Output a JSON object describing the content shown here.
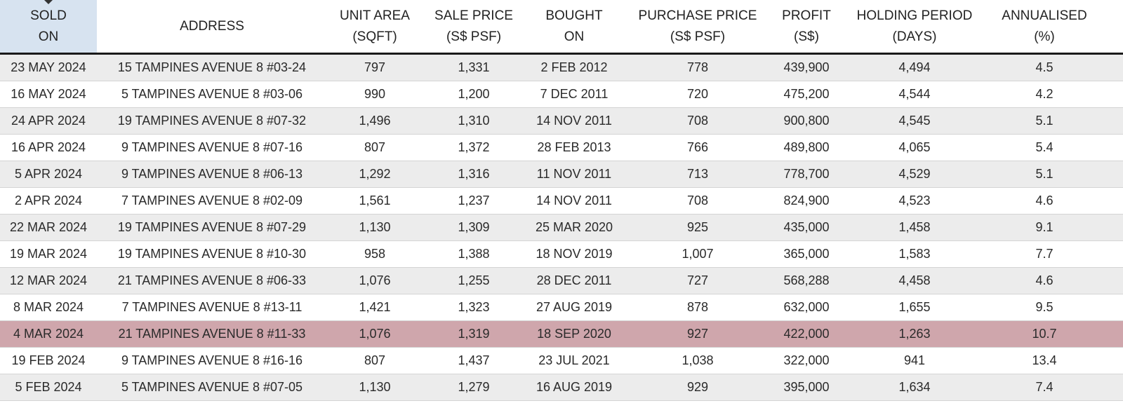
{
  "columns": [
    {
      "label": "SOLD\nON",
      "sorted": true
    },
    {
      "label": "ADDRESS",
      "sorted": false
    },
    {
      "label": "UNIT AREA\n(SQFT)",
      "sorted": false
    },
    {
      "label": "SALE PRICE\n(S$ PSF)",
      "sorted": false
    },
    {
      "label": "BOUGHT\nON",
      "sorted": false
    },
    {
      "label": "PURCHASE PRICE\n(S$ PSF)",
      "sorted": false
    },
    {
      "label": "PROFIT\n(S$)",
      "sorted": false
    },
    {
      "label": "HOLDING PERIOD\n(DAYS)",
      "sorted": false
    },
    {
      "label": "ANNUALISED\n(%)",
      "sorted": false
    }
  ],
  "sort_indicator": "sort-descending-icon",
  "highlight_color": "#cfa6ac",
  "rows": [
    {
      "cells": [
        "23 MAY 2024",
        "15 TAMPINES AVENUE 8 #03-24",
        "797",
        "1,331",
        "2 FEB 2012",
        "778",
        "439,900",
        "4,494",
        "4.5"
      ],
      "highlight": false
    },
    {
      "cells": [
        "16 MAY 2024",
        "5 TAMPINES AVENUE 8 #03-06",
        "990",
        "1,200",
        "7 DEC 2011",
        "720",
        "475,200",
        "4,544",
        "4.2"
      ],
      "highlight": false
    },
    {
      "cells": [
        "24 APR 2024",
        "19 TAMPINES AVENUE 8 #07-32",
        "1,496",
        "1,310",
        "14 NOV 2011",
        "708",
        "900,800",
        "4,545",
        "5.1"
      ],
      "highlight": false
    },
    {
      "cells": [
        "16 APR 2024",
        "9 TAMPINES AVENUE 8 #07-16",
        "807",
        "1,372",
        "28 FEB 2013",
        "766",
        "489,800",
        "4,065",
        "5.4"
      ],
      "highlight": false
    },
    {
      "cells": [
        "5 APR 2024",
        "9 TAMPINES AVENUE 8 #06-13",
        "1,292",
        "1,316",
        "11 NOV 2011",
        "713",
        "778,700",
        "4,529",
        "5.1"
      ],
      "highlight": false
    },
    {
      "cells": [
        "2 APR 2024",
        "7 TAMPINES AVENUE 8 #02-09",
        "1,561",
        "1,237",
        "14 NOV 2011",
        "708",
        "824,900",
        "4,523",
        "4.6"
      ],
      "highlight": false
    },
    {
      "cells": [
        "22 MAR 2024",
        "19 TAMPINES AVENUE 8 #07-29",
        "1,130",
        "1,309",
        "25 MAR 2020",
        "925",
        "435,000",
        "1,458",
        "9.1"
      ],
      "highlight": false
    },
    {
      "cells": [
        "19 MAR 2024",
        "19 TAMPINES AVENUE 8 #10-30",
        "958",
        "1,388",
        "18 NOV 2019",
        "1,007",
        "365,000",
        "1,583",
        "7.7"
      ],
      "highlight": false
    },
    {
      "cells": [
        "12 MAR 2024",
        "21 TAMPINES AVENUE 8 #06-33",
        "1,076",
        "1,255",
        "28 DEC 2011",
        "727",
        "568,288",
        "4,458",
        "4.6"
      ],
      "highlight": false
    },
    {
      "cells": [
        "8 MAR 2024",
        "7 TAMPINES AVENUE 8 #13-11",
        "1,421",
        "1,323",
        "27 AUG 2019",
        "878",
        "632,000",
        "1,655",
        "9.5"
      ],
      "highlight": false
    },
    {
      "cells": [
        "4 MAR 2024",
        "21 TAMPINES AVENUE 8 #11-33",
        "1,076",
        "1,319",
        "18 SEP 2020",
        "927",
        "422,000",
        "1,263",
        "10.7"
      ],
      "highlight": true
    },
    {
      "cells": [
        "19 FEB 2024",
        "9 TAMPINES AVENUE 8 #16-16",
        "807",
        "1,437",
        "23 JUL 2021",
        "1,038",
        "322,000",
        "941",
        "13.4"
      ],
      "highlight": false
    },
    {
      "cells": [
        "5 FEB 2024",
        "5 TAMPINES AVENUE 8 #07-05",
        "1,130",
        "1,279",
        "16 AUG 2019",
        "929",
        "395,000",
        "1,634",
        "7.4"
      ],
      "highlight": false
    }
  ]
}
